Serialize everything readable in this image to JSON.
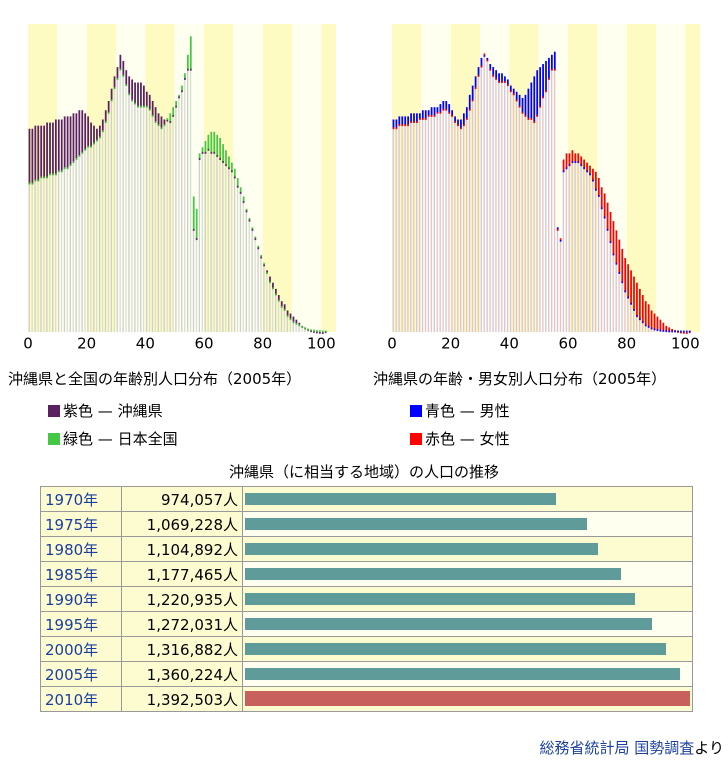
{
  "chart_data": [
    {
      "type": "bar",
      "title": "沖縄県と全国の年齢別人口分布（2005年）",
      "x_ticks": [
        "0",
        "20",
        "40",
        "60",
        "80",
        "100"
      ],
      "xlim": [
        0,
        105
      ],
      "ylim": [
        0,
        100
      ],
      "series": [
        {
          "name": "紫色 — 沖縄県",
          "color": "#5a2060",
          "values": [
            66,
            66,
            67,
            67,
            67,
            67,
            68,
            68,
            68,
            69,
            69,
            69,
            70,
            70,
            70,
            71,
            71,
            72,
            72,
            71,
            70,
            68,
            67,
            66,
            67,
            69,
            72,
            75,
            79,
            83,
            86,
            90,
            88,
            85,
            83,
            82,
            81,
            81,
            81,
            80,
            78,
            77,
            75,
            73,
            71,
            70,
            69,
            69,
            68,
            70,
            73,
            76,
            78,
            82,
            85,
            85,
            33,
            30,
            56,
            58,
            58,
            59,
            58,
            58,
            57,
            56,
            55,
            54,
            53,
            52,
            50,
            47,
            45,
            42,
            39,
            36,
            33,
            30,
            27,
            24,
            22,
            20,
            18,
            16,
            14,
            12,
            10,
            9,
            7,
            6,
            5,
            4,
            3,
            2,
            1.5,
            1,
            0.6,
            0.4,
            0.2,
            0.1,
            0.05,
            0.3
          ]
        },
        {
          "name": "緑色 — 日本全国",
          "color": "#44c844",
          "values": [
            48,
            48,
            49,
            49,
            50,
            50,
            50,
            51,
            51,
            51,
            52,
            52,
            53,
            53,
            54,
            55,
            56,
            57,
            58,
            59,
            60,
            60,
            61,
            62,
            63,
            65,
            68,
            71,
            75,
            79,
            82,
            85,
            83,
            80,
            77,
            75,
            74,
            73,
            73,
            73,
            73,
            72,
            70,
            68,
            67,
            66,
            67,
            69,
            71,
            73,
            75,
            77,
            80,
            84,
            90,
            96,
            44,
            40,
            58,
            60,
            62,
            64,
            65,
            65,
            64,
            63,
            61,
            59,
            57,
            55,
            53,
            50,
            47,
            44,
            40,
            37,
            34,
            31,
            28,
            25,
            22,
            19,
            16,
            14,
            12,
            10,
            8,
            7,
            5,
            4,
            3,
            2.5,
            2,
            1.5,
            1,
            0.6,
            0.4,
            0.3,
            0.2,
            0.1,
            0.05,
            0.02
          ]
        }
      ]
    },
    {
      "type": "bar",
      "title": "沖縄県の年齢・男女別人口分布（2005年）",
      "x_ticks": [
        "0",
        "20",
        "40",
        "60",
        "80",
        "100"
      ],
      "xlim": [
        0,
        105
      ],
      "ylim": [
        0,
        100
      ],
      "series": [
        {
          "name": "青色 — 男性",
          "color": "#0000ff",
          "values": [
            69,
            69,
            70,
            70,
            70,
            70,
            71,
            71,
            71,
            71,
            72,
            72,
            72,
            73,
            73,
            73,
            74,
            75,
            75,
            74,
            72,
            70,
            69,
            69,
            71,
            73,
            77,
            80,
            83,
            86,
            89,
            90,
            89,
            87,
            86,
            85,
            84,
            84,
            83,
            82,
            80,
            79,
            78,
            77,
            76,
            77,
            79,
            81,
            83,
            85,
            86,
            87,
            88,
            89,
            90,
            91,
            34,
            30,
            52,
            53,
            54,
            55,
            55,
            55,
            54,
            53,
            52,
            51,
            49,
            46,
            44,
            40,
            37,
            33,
            29,
            25,
            22,
            19,
            16,
            13,
            11,
            9,
            7,
            5,
            4,
            3,
            2,
            1.5,
            1,
            0.7,
            0.5,
            0.3,
            0.2,
            0.1,
            0.05,
            0.03,
            0.02,
            0.01,
            0.01,
            0,
            0,
            0
          ]
        },
        {
          "name": "赤色 — 女性",
          "color": "#ff0000",
          "values": [
            66,
            66,
            67,
            67,
            67,
            67,
            68,
            68,
            68,
            69,
            69,
            69,
            70,
            70,
            70,
            71,
            71,
            72,
            72,
            71,
            70,
            68,
            67,
            66,
            67,
            69,
            72,
            75,
            79,
            83,
            86,
            90,
            88,
            85,
            83,
            82,
            81,
            81,
            81,
            80,
            78,
            77,
            75,
            73,
            71,
            70,
            69,
            69,
            68,
            70,
            73,
            76,
            78,
            82,
            85,
            85,
            33,
            30,
            56,
            58,
            58,
            59,
            58,
            58,
            57,
            56,
            55,
            54,
            53,
            52,
            50,
            47,
            45,
            42,
            39,
            36,
            33,
            30,
            27,
            24,
            22,
            20,
            18,
            16,
            14,
            12,
            10,
            9,
            7,
            6,
            5,
            4,
            3,
            2,
            1.5,
            1,
            0.6,
            0.4,
            0.2,
            0.1,
            0.05,
            0.3
          ]
        }
      ]
    },
    {
      "type": "bar",
      "title": "沖縄県（に相当する地域）の人口の推移",
      "max": 1392503,
      "rows": [
        {
          "year": "1970年",
          "label": "974,057人",
          "value": 974057,
          "highlight": false
        },
        {
          "year": "1975年",
          "label": "1,069,228人",
          "value": 1069228,
          "highlight": false
        },
        {
          "year": "1980年",
          "label": "1,104,892人",
          "value": 1104892,
          "highlight": false
        },
        {
          "year": "1985年",
          "label": "1,177,465人",
          "value": 1177465,
          "highlight": false
        },
        {
          "year": "1990年",
          "label": "1,220,935人",
          "value": 1220935,
          "highlight": false
        },
        {
          "year": "1995年",
          "label": "1,272,031人",
          "value": 1272031,
          "highlight": false
        },
        {
          "year": "2000年",
          "label": "1,316,882人",
          "value": 1316882,
          "highlight": false
        },
        {
          "year": "2005年",
          "label": "1,360,224人",
          "value": 1360224,
          "highlight": false
        },
        {
          "year": "2010年",
          "label": "1,392,503人",
          "value": 1392503,
          "highlight": true
        }
      ]
    }
  ],
  "legend_left": [
    {
      "color_name": "紫色",
      "dash": "—",
      "label": "沖縄県",
      "color": "#5a2060"
    },
    {
      "color_name": "緑色",
      "dash": "—",
      "label": "日本全国",
      "color": "#44c844"
    }
  ],
  "legend_right": [
    {
      "color_name": "青色",
      "dash": "—",
      "label": "男性",
      "color": "#0000ff"
    },
    {
      "color_name": "赤色",
      "dash": "—",
      "label": "女性",
      "color": "#ff0000"
    }
  ],
  "source": {
    "link1": "総務省統計局",
    "link2": "国勢調査",
    "suffix": "より"
  }
}
